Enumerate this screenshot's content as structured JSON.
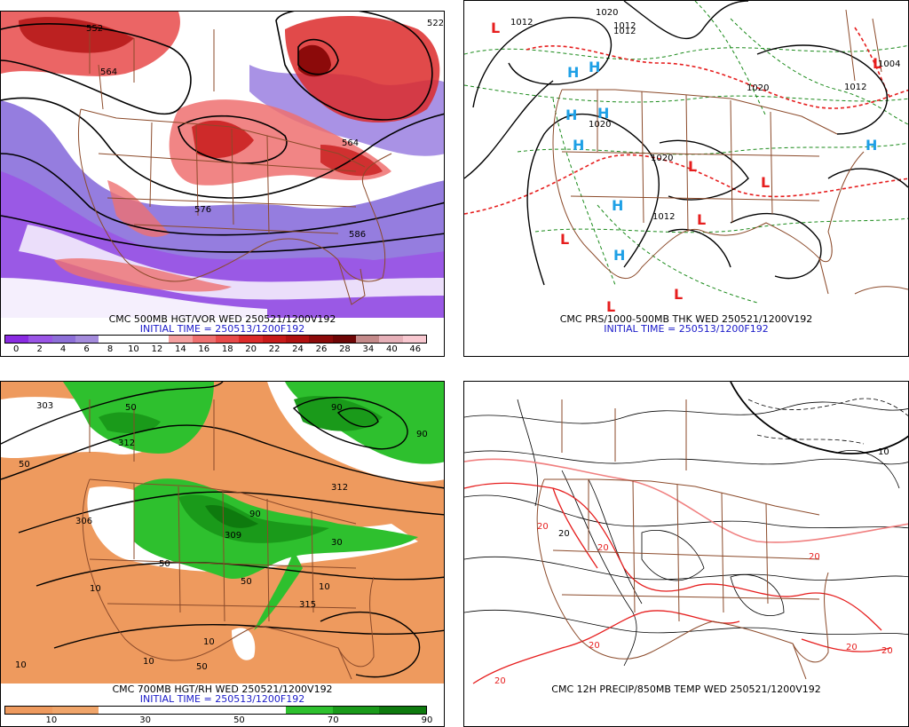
{
  "panels": {
    "vort": {
      "caption": "CMC 500MB HGT/VOR WED 250521/1200V192",
      "initial": "INITIAL TIME = 250513/1200F192",
      "contour_labels": [
        "552",
        "564",
        "564",
        "576",
        "586",
        "522"
      ],
      "scale": {
        "labels": [
          "0",
          "2",
          "4",
          "6",
          "8",
          "10",
          "12",
          "14",
          "16",
          "18",
          "20",
          "22",
          "24",
          "26",
          "28",
          "34",
          "40",
          "46"
        ],
        "colors": [
          "#8a2be2",
          "#9a55e6",
          "#8d6fd8",
          "#a48bdc",
          "#ffffff",
          "#ffffff",
          "#ffffff",
          "#f4a0a0",
          "#ee7070",
          "#e84a4a",
          "#dc2a2a",
          "#c81a1a",
          "#b01010",
          "#8c0a0a",
          "#6e0606",
          "#c48a8a",
          "#e6b0b8",
          "#f8c8d0"
        ]
      }
    },
    "pres": {
      "caption": "CMC PRS/1000-500MB THK WED 250521/1200V192",
      "initial": "INITIAL TIME = 250513/1200F192",
      "isobar_labels": [
        "1012",
        "1020",
        "1012",
        "1020",
        "1020",
        "1012",
        "1012",
        "1012",
        "1020",
        "1004"
      ],
      "highs": [
        {
          "symbol": "H"
        },
        {
          "symbol": "H"
        },
        {
          "symbol": "H"
        },
        {
          "symbol": "H"
        },
        {
          "symbol": "H"
        },
        {
          "symbol": "H"
        },
        {
          "symbol": "H"
        },
        {
          "symbol": "H"
        }
      ],
      "lows": [
        {
          "symbol": "L"
        },
        {
          "symbol": "L"
        },
        {
          "symbol": "L"
        },
        {
          "symbol": "L"
        },
        {
          "symbol": "L"
        },
        {
          "symbol": "L"
        },
        {
          "symbol": "L"
        },
        {
          "symbol": "L"
        }
      ],
      "high_color": "#1ea0e6",
      "low_color": "#e61e1e"
    },
    "rh": {
      "caption": "CMC 700MB HGT/RH WED 250521/1200V192",
      "initial": "INITIAL TIME = 250513/1200F192",
      "rh_labels": [
        "10",
        "50",
        "50",
        "90",
        "90",
        "50",
        "10",
        "10",
        "50",
        "90",
        "30",
        "10",
        "10",
        "50"
      ],
      "contour_labels": [
        "303",
        "312",
        "306",
        "312",
        "315",
        "309"
      ],
      "scale": {
        "labels": [
          "10",
          "30",
          "50",
          "70",
          "90"
        ],
        "colors": [
          "#ee9a5e",
          "#f0a56a",
          "#ffffff",
          "#ffffff",
          "#ffffff",
          "#ffffff",
          "#2ec02e",
          "#1a9a1a",
          "#0e7a0e"
        ]
      }
    },
    "precip": {
      "caption": "CMC 12H PRECIP/850MB TEMP WED 250521/1200V192",
      "temp_labels": [
        "20",
        "20",
        "20",
        "20",
        "20",
        "20",
        "20"
      ],
      "precip_labels": [
        "10",
        "20"
      ]
    }
  }
}
